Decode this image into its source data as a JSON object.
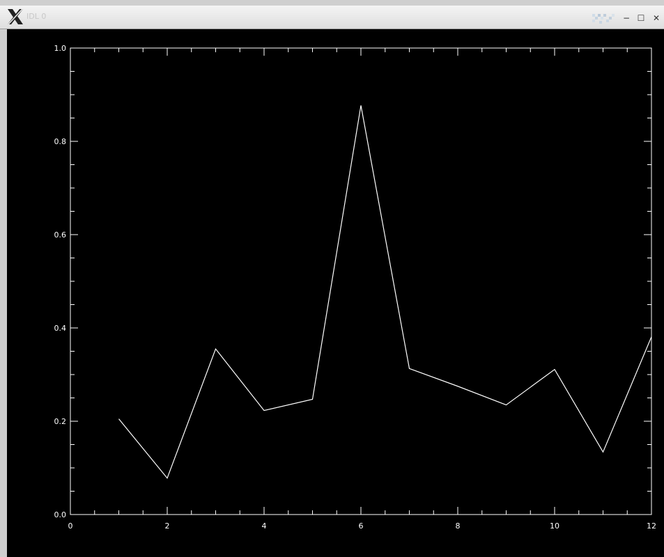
{
  "window": {
    "title": "IDL 0",
    "colors": {
      "titlebar": "#e8e8e8",
      "plot_bg": "#000000",
      "plot_fg": "#ffffff"
    },
    "icons": {
      "logo": "x-logo-icon",
      "pattern": "pattern-icon",
      "minimize": "minimize-icon",
      "maximize": "maximize-icon",
      "close": "close-icon"
    },
    "buttons": {
      "minimize": "−",
      "maximize": "☐",
      "close": "✕"
    }
  },
  "chart_data": {
    "type": "line",
    "title": "",
    "xlabel": "",
    "ylabel": "",
    "xlim": [
      0,
      12
    ],
    "ylim": [
      0.0,
      1.0
    ],
    "grid": false,
    "x_ticks": [
      0,
      2,
      4,
      6,
      8,
      10,
      12
    ],
    "x_tick_labels": [
      "0",
      "2",
      "4",
      "6",
      "8",
      "10",
      "12"
    ],
    "y_ticks": [
      0.0,
      0.2,
      0.4,
      0.6,
      0.8,
      1.0
    ],
    "y_tick_labels": [
      "0.0",
      "0.2",
      "0.4",
      "0.6",
      "0.8",
      "1.0"
    ],
    "x_minor_step": 0.5,
    "y_minor_step": 0.05,
    "series": [
      {
        "x": [
          1,
          2,
          3,
          4,
          5,
          6,
          7,
          8,
          9,
          10,
          11,
          12
        ],
        "values": [
          0.205,
          0.078,
          0.355,
          0.223,
          0.247,
          0.877,
          0.313,
          0.275,
          0.235,
          0.311,
          0.134,
          0.381
        ]
      }
    ]
  }
}
